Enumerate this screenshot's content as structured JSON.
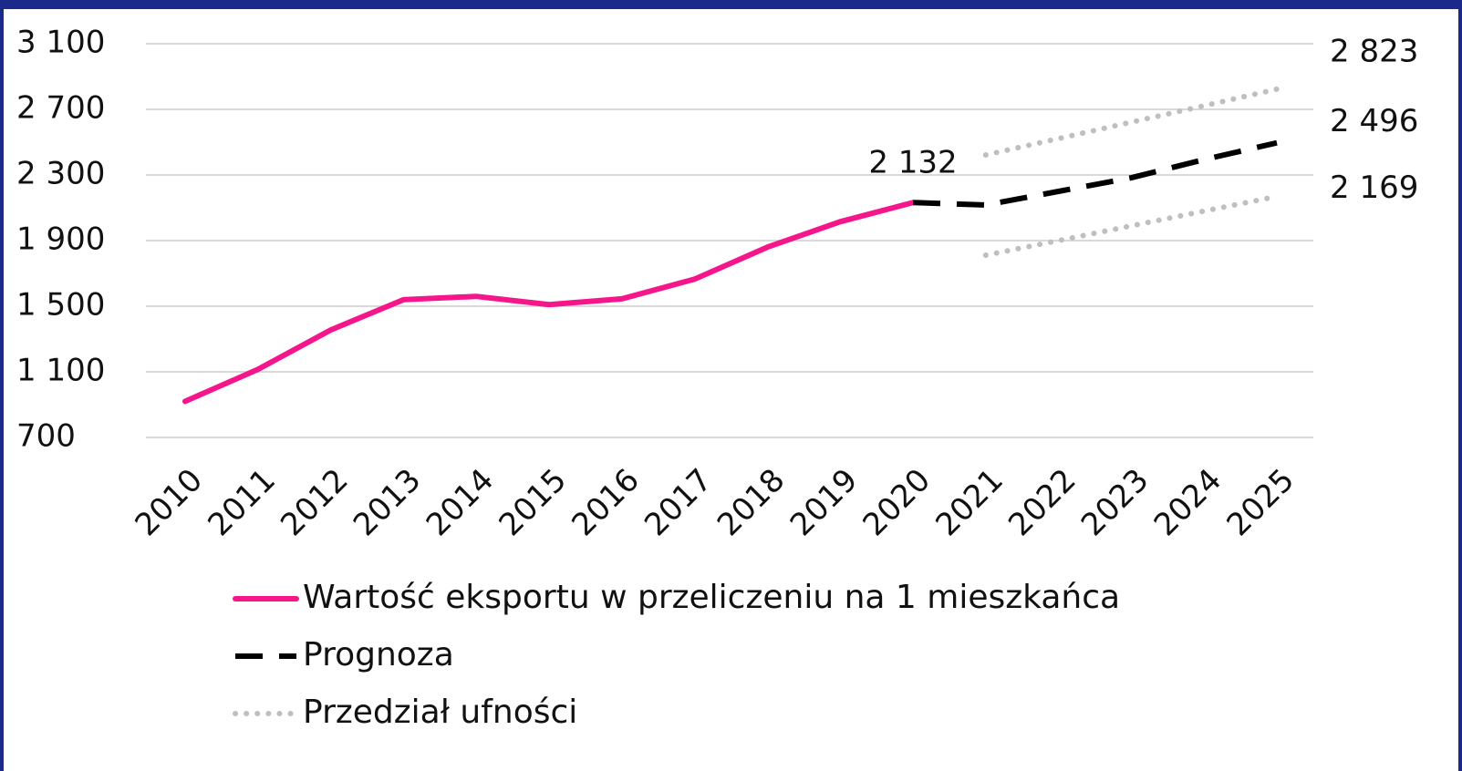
{
  "chart_data": {
    "type": "line",
    "categories": [
      "2010",
      "2011",
      "2012",
      "2013",
      "2014",
      "2015",
      "2016",
      "2017",
      "2018",
      "2019",
      "2020",
      "2021",
      "2022",
      "2023",
      "2024",
      "2025"
    ],
    "series": [
      {
        "name": "Wartość eksportu w przeliczeniu na 1 mieszkańca",
        "color": "#f5168c",
        "style": "solid",
        "values": [
          920,
          1115,
          1355,
          1540,
          1560,
          1510,
          1545,
          1665,
          1860,
          2015,
          2132,
          null,
          null,
          null,
          null,
          null
        ],
        "value_labels": [
          null,
          null,
          null,
          null,
          null,
          null,
          null,
          null,
          null,
          null,
          "2 132",
          null,
          null,
          null,
          null,
          null
        ]
      },
      {
        "name": "Prognoza",
        "color": "#000000",
        "style": "dashed",
        "values": [
          null,
          null,
          null,
          null,
          null,
          null,
          null,
          null,
          null,
          null,
          2132,
          2117,
          2200,
          2283,
          2394,
          2496
        ],
        "value_labels": [
          null,
          null,
          null,
          null,
          null,
          null,
          null,
          null,
          null,
          null,
          null,
          null,
          null,
          null,
          null,
          "2 496"
        ]
      },
      {
        "name": "Przedział ufności",
        "color": "#bfbfbf",
        "style": "dotted",
        "values": [
          null,
          null,
          null,
          null,
          null,
          null,
          null,
          null,
          null,
          null,
          null,
          2422,
          2522,
          2622,
          2722,
          2823
        ],
        "value_labels": [
          null,
          null,
          null,
          null,
          null,
          null,
          null,
          null,
          null,
          null,
          null,
          null,
          null,
          null,
          null,
          "2 823"
        ]
      },
      {
        "color": "#bfbfbf",
        "style": "dotted",
        "values": [
          null,
          null,
          null,
          null,
          null,
          null,
          null,
          null,
          null,
          null,
          null,
          1811,
          1900,
          1990,
          2080,
          2169
        ],
        "value_labels": [
          null,
          null,
          null,
          null,
          null,
          null,
          null,
          null,
          null,
          null,
          null,
          null,
          null,
          null,
          null,
          "2 169"
        ]
      }
    ],
    "ylim": [
      700,
      3100
    ],
    "yticks": [
      {
        "value": 700,
        "label": "700"
      },
      {
        "value": 1100,
        "label": "1 100"
      },
      {
        "value": 1500,
        "label": "1 500"
      },
      {
        "value": 1900,
        "label": "1 900"
      },
      {
        "value": 2300,
        "label": "2 300"
      },
      {
        "value": 2700,
        "label": "2 700"
      },
      {
        "value": 3100,
        "label": "3 100"
      }
    ],
    "grid": true,
    "legend": "bottom"
  }
}
